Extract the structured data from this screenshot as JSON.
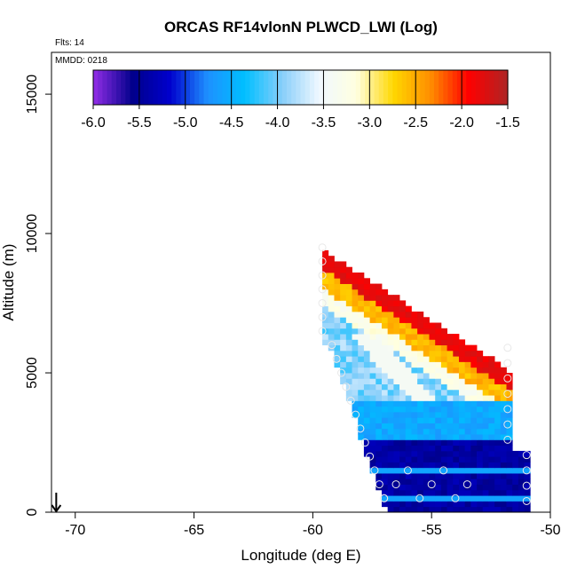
{
  "chart_data": {
    "type": "heatmap",
    "title": "ORCAS RF14vlonN PLWCD_LWI (Log)",
    "flts_label": "Flts: 14",
    "mmdd_label": "MMDD: 0218",
    "xlabel": "Longitude (deg E)",
    "ylabel": "Altitude (m)",
    "xlim": [
      -71,
      -50
    ],
    "ylim": [
      0,
      16500
    ],
    "xticks": [
      -70,
      -65,
      -60,
      -55,
      -50
    ],
    "yticks": [
      0,
      5000,
      10000,
      15000
    ],
    "colorbar": {
      "range": [
        -6.0,
        -1.5
      ],
      "ticks": [
        "-6.0",
        "-5.5",
        "-5.0",
        "-4.5",
        "-4.0",
        "-3.5",
        "-3.0",
        "-2.5",
        "-2.0",
        "-1.5"
      ],
      "colors": [
        "#8a2be2",
        "#00008b",
        "#0000cd",
        "#1e90ff",
        "#00bfff",
        "#87cefa",
        "#f0f8ff",
        "#ffffe0",
        "#ffd700",
        "#ff8c00",
        "#ff0000",
        "#b22222"
      ]
    },
    "marker_longitude": -70.8,
    "grid": false
  }
}
